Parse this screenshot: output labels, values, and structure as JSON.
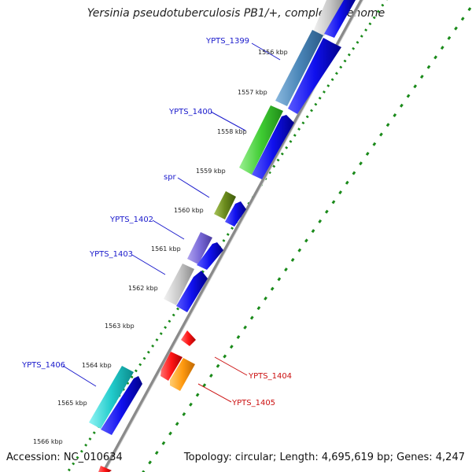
{
  "title": "Yersinia pseudotuberculosis PB1/+, complete genome",
  "footer": {
    "accession": "Accession: NC_010634",
    "summary": "Topology: circular; Length: 4,695,619 bp; Genes: 4,247"
  },
  "colors": {
    "cds_blue": "#1010ee",
    "forward_label": "#1a1acc",
    "reverse_label": "#cc1111",
    "ticks": "#1a8a1a",
    "backbone": "#8a8a8a"
  },
  "scale_ticks": [
    {
      "label": "1556 kbp"
    },
    {
      "label": "1557 kbp"
    },
    {
      "label": "1558 kbp"
    },
    {
      "label": "1559 kbp"
    },
    {
      "label": "1560 kbp"
    },
    {
      "label": "1561 kbp"
    },
    {
      "label": "1562 kbp"
    },
    {
      "label": "1563 kbp"
    },
    {
      "label": "1564 kbp"
    },
    {
      "label": "1565 kbp"
    },
    {
      "label": "1566 kbp"
    }
  ],
  "genes": [
    {
      "name": "YPTS_1399",
      "strand": "forward",
      "color": "#4a86b8"
    },
    {
      "name": "YPTS_1400",
      "strand": "forward",
      "color": "#3fcc33"
    },
    {
      "name": "spr",
      "strand": "forward",
      "color": "#6a8a1c"
    },
    {
      "name": "YPTS_1402",
      "strand": "forward",
      "color": "#7a6ad8"
    },
    {
      "name": "YPTS_1403",
      "strand": "forward",
      "color": "#c8c8c8"
    },
    {
      "name": "YPTS_1404",
      "strand": "reverse",
      "color": "#ff1515"
    },
    {
      "name": "YPTS_1405",
      "strand": "reverse",
      "color": "#ff9a10"
    },
    {
      "name": "YPTS_1406",
      "strand": "forward",
      "color": "#22cccc"
    }
  ]
}
